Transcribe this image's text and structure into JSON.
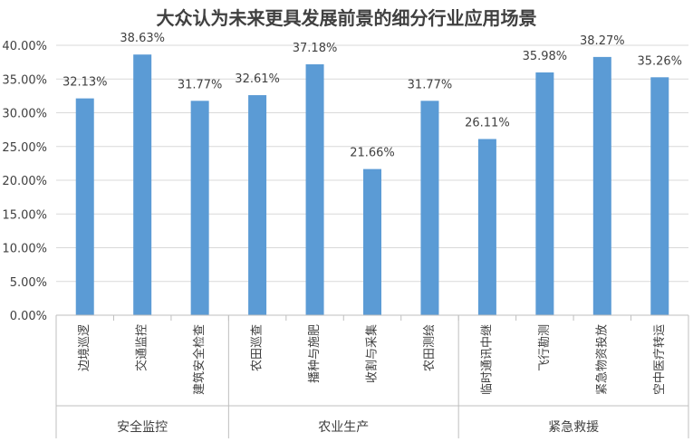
{
  "chart_data": {
    "type": "bar",
    "title": "大众认为未来更具发展前景的细分行业应用场景",
    "xlabel": "",
    "ylabel": "",
    "ylim": [
      0,
      40
    ],
    "yticks": [
      "0.00%",
      "5.00%",
      "10.00%",
      "15.00%",
      "20.00%",
      "25.00%",
      "30.00%",
      "35.00%",
      "40.00%"
    ],
    "grid": true,
    "bar_color": "#5B9BD5",
    "categories": [
      "边境巡逻",
      "交通监控",
      "建筑安全检查",
      "农田巡查",
      "播种与施肥",
      "收割与采集",
      "农田测绘",
      "临时通讯中继",
      "飞行勘测",
      "紧急物资投放",
      "空中医疗转运"
    ],
    "values": [
      32.13,
      38.63,
      31.77,
      32.61,
      37.18,
      21.66,
      31.77,
      26.11,
      35.98,
      38.27,
      35.26
    ],
    "value_labels": [
      "32.13%",
      "38.63%",
      "31.77%",
      "32.61%",
      "37.18%",
      "21.66%",
      "31.77%",
      "26.11%",
      "35.98%",
      "38.27%",
      "35.26%"
    ],
    "groups": [
      {
        "label": "安全监控",
        "count": 3
      },
      {
        "label": "农业生产",
        "count": 4
      },
      {
        "label": "紧急救援",
        "count": 4
      }
    ]
  }
}
